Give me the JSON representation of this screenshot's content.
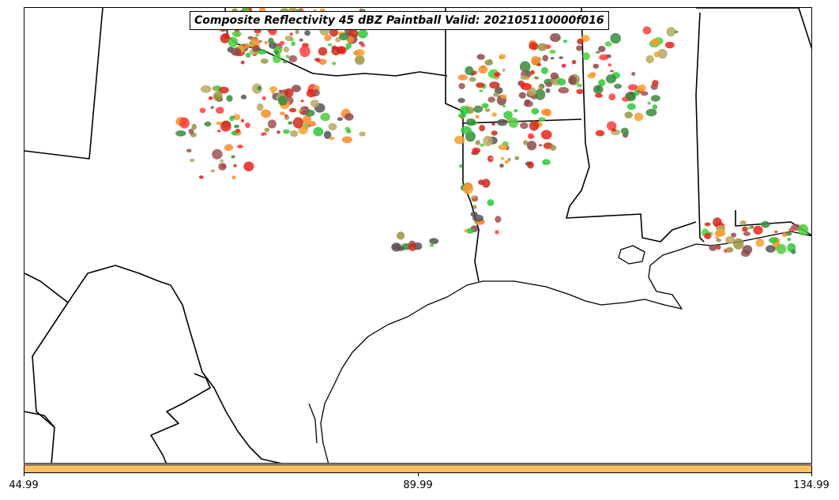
{
  "map": {
    "title": "Composite Reflectivity 45 dBZ Paintball Valid: 202105110000f016",
    "basemap": "southern Plains / Gulf Coast: Texas, Oklahoma, Louisiana, Arkansas, Mississippi, Alabama",
    "overlay": "reflectivity paintball blobs (ensemble members)",
    "member_colors": [
      "#e8221c",
      "#cc2a1a",
      "#ff3d3d",
      "#f7a030",
      "#ff8a2a",
      "#4fcc3c",
      "#2ec83a",
      "#3a8a3c",
      "#9a9440",
      "#b8a860",
      "#8a4a4a",
      "#555555",
      "#a05050"
    ]
  },
  "colorbar": {
    "color": "#fdc060",
    "ticks": [
      "44.99",
      "89.99",
      "134.99"
    ]
  }
}
